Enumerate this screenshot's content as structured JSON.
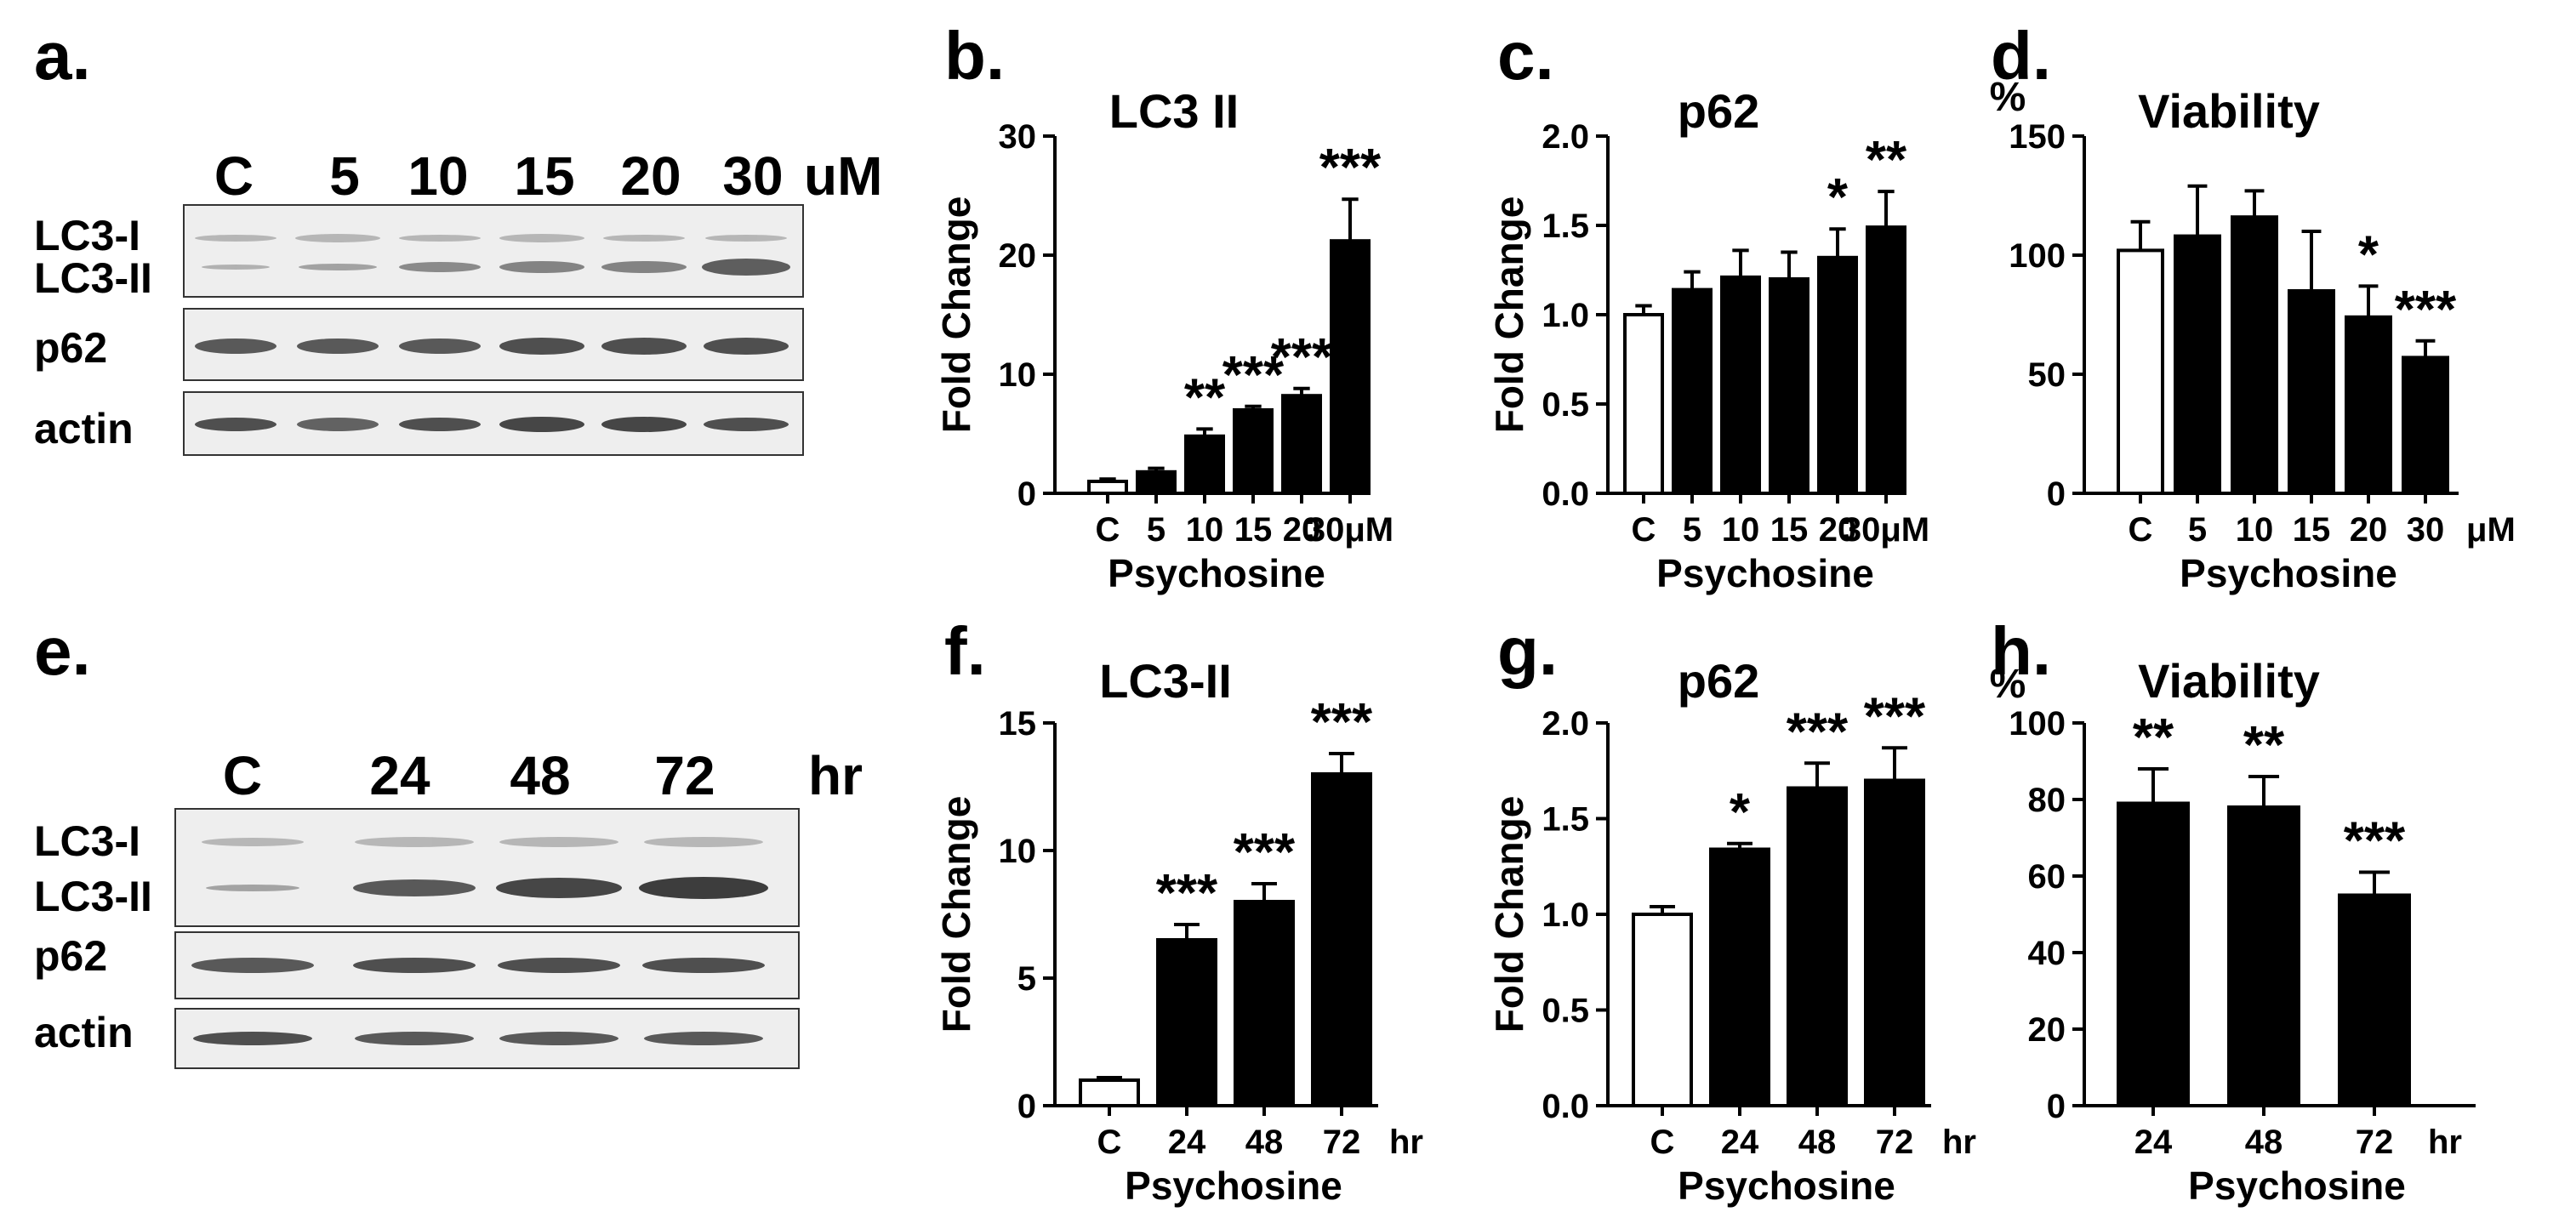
{
  "panels": {
    "a": "a.",
    "b": "b.",
    "c": "c.",
    "d": "d.",
    "e": "e.",
    "f": "f.",
    "g": "g.",
    "h": "h."
  },
  "blot_top": {
    "lanes": [
      "C",
      "5",
      "10",
      "15",
      "20",
      "30"
    ],
    "unit": "uM",
    "row_labels": [
      "LC3-I",
      "LC3-II",
      "p62",
      "actin"
    ]
  },
  "blot_bottom": {
    "lanes": [
      "C",
      "24",
      "48",
      "72"
    ],
    "unit": "hr",
    "row_labels": [
      "LC3-I",
      "LC3-II",
      "p62",
      "actin"
    ]
  },
  "chart_data": [
    {
      "id": "b",
      "type": "bar",
      "title": "LC3 II",
      "ylabel": "Fold Change",
      "xlabel": "Psychosine",
      "categories": [
        "C",
        "5",
        "10",
        "15",
        "20",
        "30μM"
      ],
      "values": [
        1,
        1.8,
        4.8,
        7.0,
        8.2,
        21.2
      ],
      "errors": [
        0.2,
        0.3,
        0.6,
        0.3,
        0.6,
        3.5
      ],
      "significance": [
        "",
        "",
        "**",
        "***",
        "***",
        "***"
      ],
      "fills": [
        "#ffffff",
        "#000000",
        "#000000",
        "#000000",
        "#000000",
        "#000000"
      ],
      "ylim": [
        0,
        30
      ],
      "yticks": [
        "0",
        "10",
        "20",
        "30"
      ]
    },
    {
      "id": "c",
      "type": "bar",
      "title": "p62",
      "ylabel": "Fold Change",
      "xlabel": "Psychosine",
      "categories": [
        "C",
        "5",
        "10",
        "15",
        "20",
        "30μM"
      ],
      "values": [
        1.0,
        1.14,
        1.21,
        1.2,
        1.32,
        1.49
      ],
      "errors": [
        0.05,
        0.1,
        0.15,
        0.15,
        0.16,
        0.2
      ],
      "significance": [
        "",
        "",
        "",
        "",
        "*",
        "**"
      ],
      "fills": [
        "#ffffff",
        "#000000",
        "#000000",
        "#000000",
        "#000000",
        "#000000"
      ],
      "ylim": [
        0,
        2.0
      ],
      "yticks": [
        "0.0",
        "0.5",
        "1.0",
        "1.5",
        "2.0"
      ]
    },
    {
      "id": "d",
      "type": "bar",
      "title": "Viability",
      "ylabel": "%",
      "xlabel": "Psychosine",
      "categories": [
        "C",
        "5",
        "10",
        "15",
        "20",
        "30"
      ],
      "unit": "μM",
      "values": [
        102,
        108,
        116,
        85,
        74,
        57
      ],
      "errors": [
        12,
        21,
        11,
        25,
        13,
        7
      ],
      "significance": [
        "",
        "",
        "",
        "",
        "*",
        "***"
      ],
      "fills": [
        "#ffffff",
        "#000000",
        "#000000",
        "#000000",
        "#000000",
        "#000000"
      ],
      "ylim": [
        0,
        150
      ],
      "yticks": [
        "0",
        "50",
        "100",
        "150"
      ]
    },
    {
      "id": "f",
      "type": "bar",
      "title": "LC3-II",
      "ylabel": "Fold Change",
      "xlabel": "Psychosine",
      "categories": [
        "C",
        "24",
        "48",
        "72"
      ],
      "unit": "hr",
      "values": [
        1.0,
        6.5,
        8.0,
        13.0
      ],
      "errors": [
        0.1,
        0.6,
        0.7,
        0.8
      ],
      "significance": [
        "",
        "***",
        "***",
        "***"
      ],
      "fills": [
        "#ffffff",
        "#000000",
        "#000000",
        "#000000"
      ],
      "ylim": [
        0,
        15
      ],
      "yticks": [
        "0",
        "5",
        "10",
        "15"
      ]
    },
    {
      "id": "g",
      "type": "bar",
      "title": "p62",
      "ylabel": "Fold Change",
      "xlabel": "Psychosine",
      "categories": [
        "C",
        "24",
        "48",
        "72"
      ],
      "unit": "hr",
      "values": [
        1.0,
        1.34,
        1.66,
        1.7
      ],
      "errors": [
        0.04,
        0.03,
        0.13,
        0.17
      ],
      "significance": [
        "",
        "*",
        "***",
        "***"
      ],
      "fills": [
        "#ffffff",
        "#000000",
        "#000000",
        "#000000"
      ],
      "ylim": [
        0,
        2.0
      ],
      "yticks": [
        "0.0",
        "0.5",
        "1.0",
        "1.5",
        "2.0"
      ]
    },
    {
      "id": "h",
      "type": "bar",
      "title": "Viability",
      "ylabel": "%",
      "xlabel": "Psychosine",
      "categories": [
        "24",
        "48",
        "72"
      ],
      "unit": "hr",
      "values": [
        79,
        78,
        55
      ],
      "errors": [
        9,
        8,
        6
      ],
      "significance": [
        "**",
        "**",
        "***"
      ],
      "fills": [
        "#000000",
        "#000000",
        "#000000"
      ],
      "ylim": [
        0,
        100
      ],
      "yticks": [
        "0",
        "20",
        "40",
        "60",
        "80",
        "100"
      ]
    }
  ]
}
